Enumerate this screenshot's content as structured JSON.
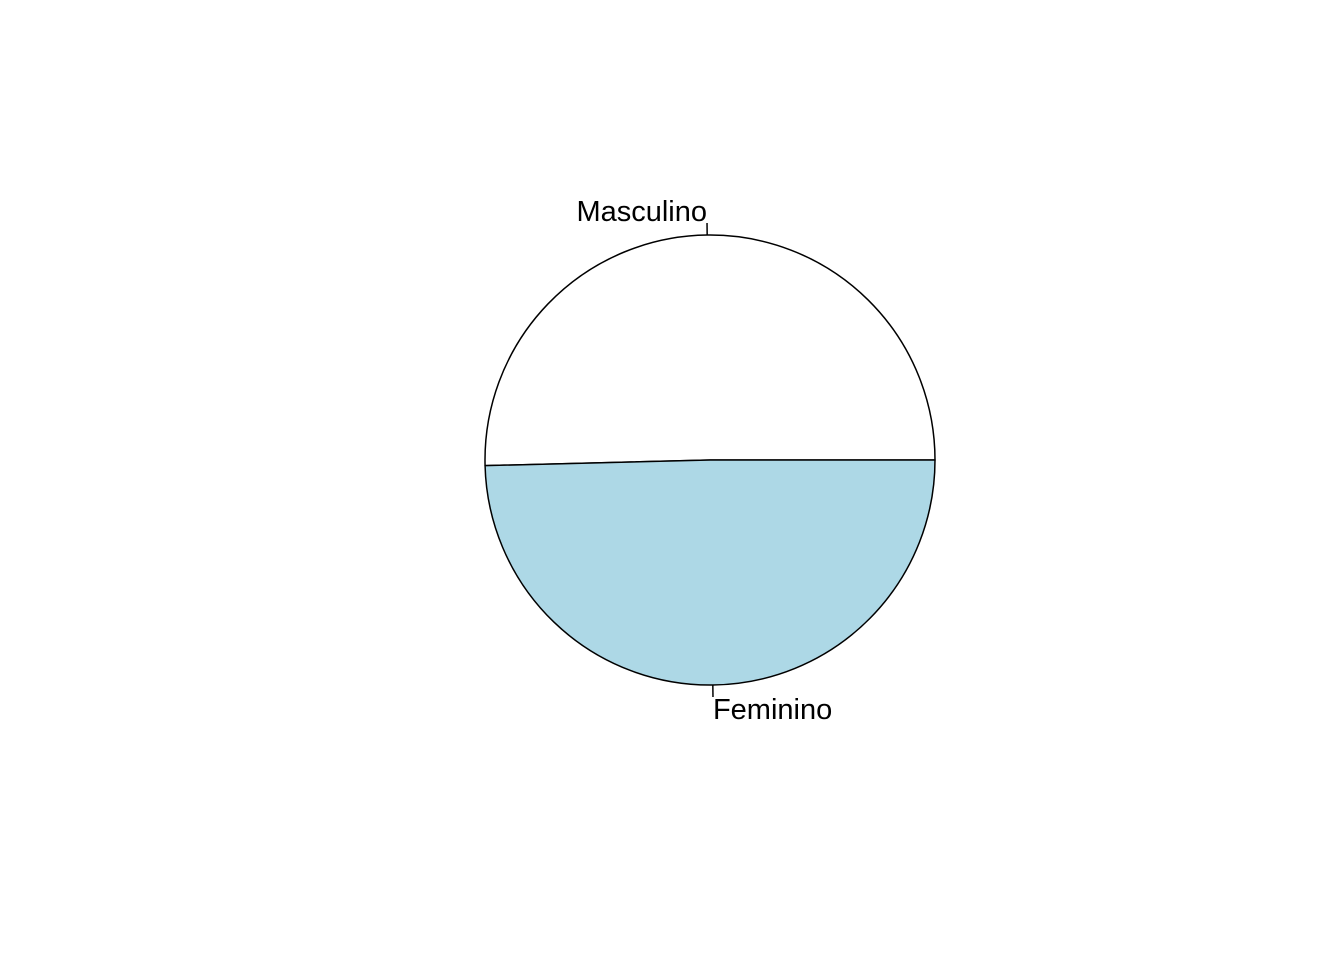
{
  "chart_data": {
    "type": "pie",
    "categories": [
      "Masculino",
      "Feminino"
    ],
    "values": [
      50.4,
      49.6
    ],
    "colors": [
      "#ffffff",
      "#add8e6"
    ],
    "border_color": "#000000",
    "title": "",
    "legend": "none"
  }
}
